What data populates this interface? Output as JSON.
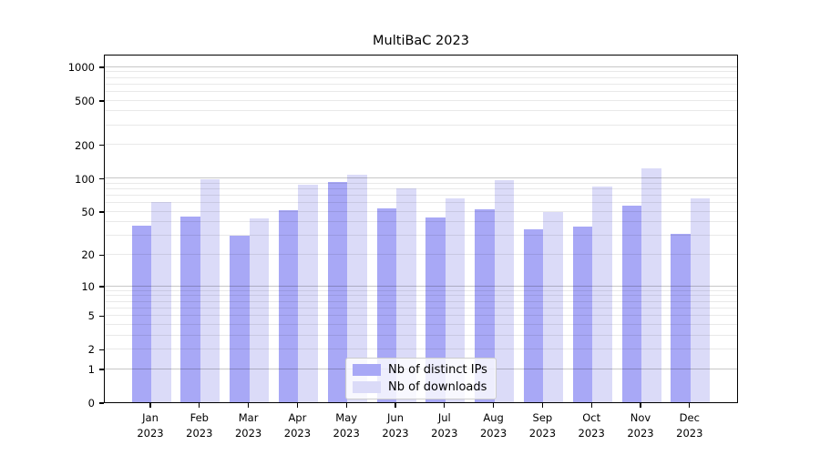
{
  "title": "MultiBaC 2023",
  "chart_data": {
    "type": "bar",
    "title": "MultiBaC 2023",
    "categories": [
      "Jan",
      "Feb",
      "Mar",
      "Apr",
      "May",
      "Jun",
      "Jul",
      "Aug",
      "Sep",
      "Oct",
      "Nov",
      "Dec"
    ],
    "year": "2023",
    "series": [
      {
        "name": "Nb of distinct IPs",
        "color": "#a8a8f6",
        "values": [
          37,
          45,
          30,
          51,
          92,
          53,
          44,
          52,
          34,
          36,
          56,
          31
        ]
      },
      {
        "name": "Nb of downloads",
        "color": "#dbdbf8",
        "values": [
          61,
          97,
          43,
          87,
          107,
          80,
          65,
          95,
          49,
          84,
          122,
          65
        ]
      }
    ],
    "yscale": "log1p",
    "ylim": [
      0,
      1302
    ],
    "yticks": [
      0,
      1,
      2,
      5,
      10,
      20,
      50,
      100,
      200,
      500,
      1000
    ],
    "grid": "both",
    "legend_position": "lower center inside",
    "xlabel": "",
    "ylabel": ""
  }
}
